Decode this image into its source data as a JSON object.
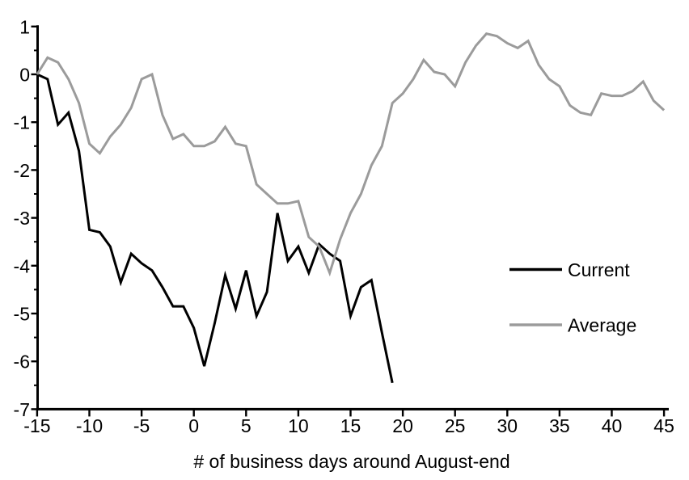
{
  "chart_data": {
    "type": "line",
    "title": "",
    "xlabel": "# of business days around August-end",
    "ylabel": "",
    "xlim": [
      -15,
      45
    ],
    "ylim": [
      -7,
      1
    ],
    "x_ticks": [
      -15,
      -10,
      -5,
      0,
      5,
      10,
      15,
      20,
      25,
      30,
      35,
      40,
      45
    ],
    "y_ticks": [
      1,
      0,
      -1,
      -2,
      -3,
      -4,
      -5,
      -6,
      -7
    ],
    "y_minor_tick_step": 0.5,
    "grid": false,
    "legend_position": "middle-right",
    "series": [
      {
        "name": "Current",
        "color": "#000000",
        "x_start": -15,
        "x_step": 1,
        "values": [
          0,
          -0.1,
          -1.05,
          -0.8,
          -1.6,
          -3.25,
          -3.3,
          -3.6,
          -4.35,
          -3.75,
          -3.95,
          -4.1,
          -4.45,
          -4.85,
          -4.85,
          -5.3,
          -6.1,
          -5.2,
          -4.2,
          -4.9,
          -4.1,
          -5.05,
          -4.55,
          -2.9,
          -3.9,
          -3.6,
          -4.15,
          -3.55,
          -3.75,
          -3.9,
          -5.05,
          -4.45,
          -4.3,
          -5.4,
          -6.45
        ]
      },
      {
        "name": "Average",
        "color": "#9b9b9b",
        "x_start": -15,
        "x_step": 1,
        "values": [
          0,
          0.35,
          0.25,
          -0.1,
          -0.6,
          -1.45,
          -1.65,
          -1.3,
          -1.05,
          -0.7,
          -0.1,
          0,
          -0.85,
          -1.35,
          -1.25,
          -1.5,
          -1.5,
          -1.4,
          -1.1,
          -1.45,
          -1.5,
          -2.3,
          -2.5,
          -2.7,
          -2.7,
          -2.65,
          -3.4,
          -3.6,
          -4.15,
          -3.45,
          -2.9,
          -2.5,
          -1.9,
          -1.5,
          -0.6,
          -0.4,
          -0.1,
          0.3,
          0.05,
          0,
          -0.25,
          0.25,
          0.6,
          0.85,
          0.8,
          0.65,
          0.55,
          0.7,
          0.2,
          -0.1,
          -0.25,
          -0.65,
          -0.8,
          -0.85,
          -0.4,
          -0.45,
          -0.45,
          -0.35,
          -0.15,
          -0.55,
          -0.75
        ]
      }
    ]
  },
  "colors": {
    "background": "#ffffff",
    "axis": "#000000",
    "tick_labels": "#000000",
    "series_current": "#000000",
    "series_average": "#9b9b9b"
  }
}
